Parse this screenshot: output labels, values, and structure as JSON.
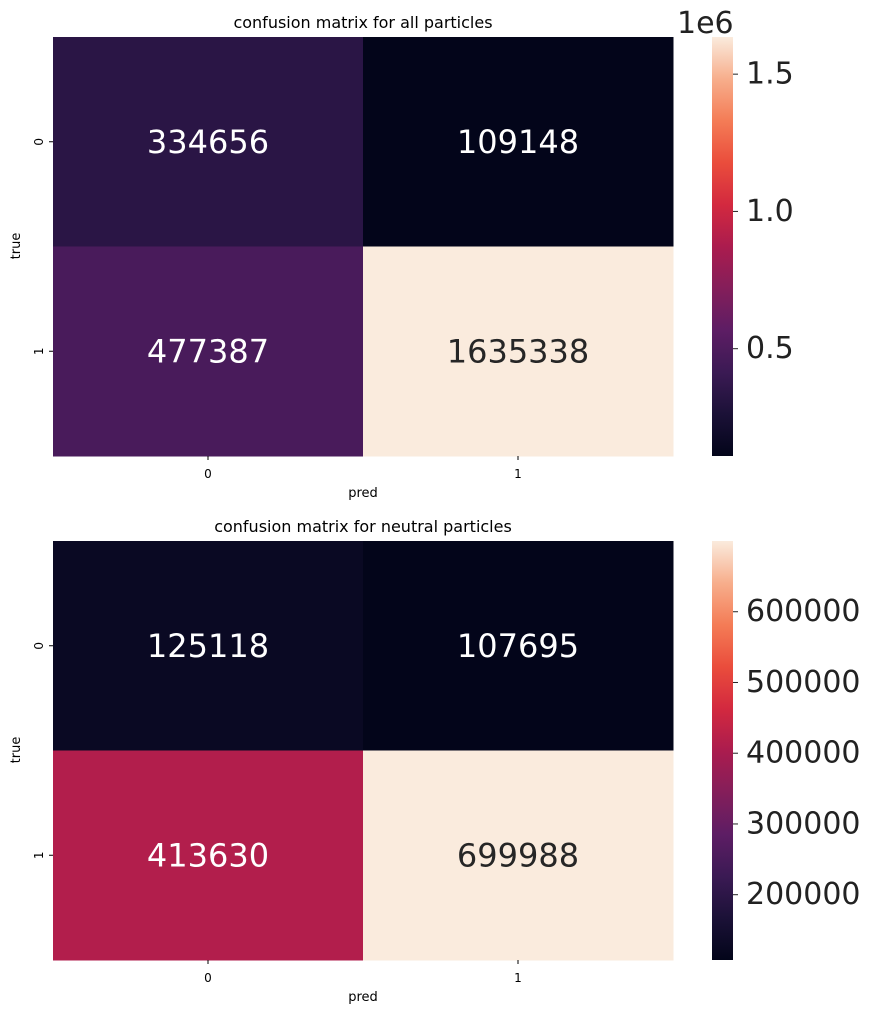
{
  "chart_data": [
    {
      "type": "heatmap",
      "title": "confusion matrix for all particles",
      "xlabel": "pred",
      "ylabel": "true",
      "x_categories": [
        "0",
        "1"
      ],
      "y_categories": [
        "0",
        "1"
      ],
      "values": [
        [
          334656,
          109148
        ],
        [
          477387,
          1635338
        ]
      ],
      "colormap": "rocket",
      "colorbar": {
        "range": [
          109148,
          1635338
        ],
        "ticks": [
          0.5,
          1.0,
          1.5
        ],
        "tick_labels": [
          "0.5",
          "1.0",
          "1.5"
        ],
        "scale_factor": 1000000,
        "offset_label": "1e6"
      }
    },
    {
      "type": "heatmap",
      "title": "confusion matrix for neutral particles",
      "xlabel": "pred",
      "ylabel": "true",
      "x_categories": [
        "0",
        "1"
      ],
      "y_categories": [
        "0",
        "1"
      ],
      "values": [
        [
          125118,
          107695
        ],
        [
          413630,
          699988
        ]
      ],
      "colormap": "rocket",
      "colorbar": {
        "range": [
          107695,
          699988
        ],
        "ticks": [
          200000,
          300000,
          400000,
          500000,
          600000
        ],
        "tick_labels": [
          "200000",
          "300000",
          "400000",
          "500000",
          "600000"
        ],
        "scale_factor": 1,
        "offset_label": ""
      }
    }
  ]
}
